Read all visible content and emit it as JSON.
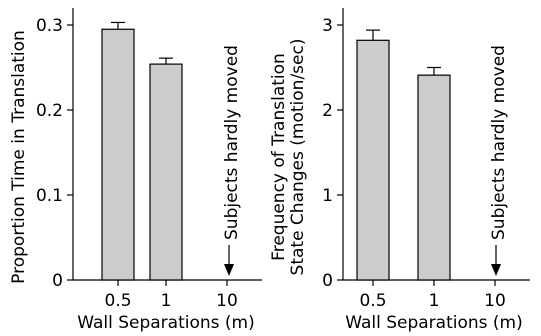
{
  "chart_data": [
    {
      "type": "bar",
      "categories": [
        "0.5",
        "1",
        "10"
      ],
      "values": [
        0.295,
        0.254,
        null
      ],
      "errors": [
        0.008,
        0.007,
        null
      ],
      "ylim": [
        0,
        0.32
      ],
      "yticks": [
        "0",
        "0.1",
        "0.2",
        "0.3"
      ],
      "ytick_values": [
        0,
        0.1,
        0.2,
        0.3
      ],
      "xlabel": "Wall Separations (m)",
      "ylabel": [
        "Proportion Time in Translation"
      ],
      "annotation": "Subjects hardly moved",
      "bar_color": "#cccccc"
    },
    {
      "type": "bar",
      "categories": [
        "0.5",
        "1",
        "10"
      ],
      "values": [
        2.82,
        2.41,
        null
      ],
      "errors": [
        0.12,
        0.09,
        null
      ],
      "ylim": [
        0,
        3.2
      ],
      "yticks": [
        "0",
        "1",
        "2",
        "3"
      ],
      "ytick_values": [
        0,
        1,
        2,
        3
      ],
      "xlabel": "Wall Separations (m)",
      "ylabel": [
        "Frequency of Translation",
        "State Changes (motion/sec)"
      ],
      "annotation": "Subjects hardly moved",
      "bar_color": "#cccccc"
    }
  ]
}
